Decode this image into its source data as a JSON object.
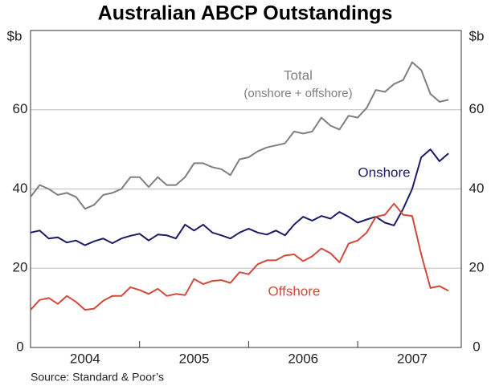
{
  "chart_data": {
    "type": "line",
    "title": "Australian ABCP Outstandings",
    "ylabel": "$b",
    "y2label": "$b",
    "source": "Source: Standard & Poor’s",
    "annotation": "(onshore + offshore)",
    "x": [
      2004,
      2004.083,
      2004.167,
      2004.25,
      2004.333,
      2004.417,
      2004.5,
      2004.583,
      2004.667,
      2004.75,
      2004.833,
      2004.917,
      2005,
      2005.083,
      2005.167,
      2005.25,
      2005.333,
      2005.417,
      2005.5,
      2005.583,
      2005.667,
      2005.75,
      2005.833,
      2005.917,
      2006,
      2006.083,
      2006.167,
      2006.25,
      2006.333,
      2006.417,
      2006.5,
      2006.583,
      2006.667,
      2006.75,
      2006.833,
      2006.917,
      2007,
      2007.083,
      2007.167,
      2007.25,
      2007.333,
      2007.417,
      2007.5,
      2007.583,
      2007.667,
      2007.75,
      2007.833
    ],
    "series": [
      {
        "name": "Total",
        "color": "#7f7f7f",
        "values": [
          38,
          41,
          40,
          38.5,
          39,
          38,
          35,
          36,
          38.5,
          39,
          40,
          43,
          43,
          40.5,
          43,
          41,
          41,
          43,
          46.5,
          46.5,
          45.5,
          45,
          43.5,
          47.5,
          48,
          49.5,
          50.5,
          51,
          51.5,
          54.5,
          54,
          54.5,
          58,
          56,
          55,
          58.5,
          58,
          60.5,
          65,
          64.5,
          66.5,
          67.5,
          72,
          70,
          64,
          62,
          62.5
        ]
      },
      {
        "name": "Onshore",
        "color": "#1b1b66",
        "values": [
          29,
          29.5,
          27.5,
          27.8,
          26.5,
          27,
          25.8,
          26.8,
          27.5,
          26.3,
          27.5,
          28.2,
          28.7,
          27,
          28.5,
          28.3,
          27.5,
          31,
          29.5,
          31,
          29,
          28.3,
          27.5,
          29,
          30,
          29,
          28.5,
          29.5,
          28.3,
          31,
          33,
          32,
          33.2,
          32.5,
          34.2,
          33,
          31.5,
          32.3,
          33,
          31.5,
          30.8,
          35,
          40,
          48,
          50,
          47,
          49
        ]
      },
      {
        "name": "Offshore",
        "color": "#d04a3a",
        "values": [
          9.5,
          12,
          12.5,
          11,
          13,
          11.5,
          9.5,
          9.8,
          11.8,
          13,
          13,
          15.2,
          14.5,
          13.5,
          14.8,
          13,
          13.5,
          13.2,
          17.3,
          16,
          16.8,
          17,
          16.3,
          19,
          18.5,
          21,
          22,
          22,
          23.2,
          23.5,
          21.8,
          23,
          25,
          23.8,
          21.5,
          26.2,
          27,
          29,
          33,
          33.5,
          36.3,
          33.5,
          33.2,
          23.5,
          15,
          15.5,
          14.3
        ]
      }
    ],
    "xlim": [
      2004,
      2007.95
    ],
    "xticks": [
      {
        "value": 2004.5,
        "label": "2004"
      },
      {
        "value": 2005.5,
        "label": "2005"
      },
      {
        "value": 2006.5,
        "label": "2006"
      },
      {
        "value": 2007.5,
        "label": "2007"
      }
    ],
    "xdividers": [
      2005,
      2006,
      2007
    ],
    "ylim": [
      0,
      80
    ],
    "yticks": [
      0,
      20,
      40,
      60
    ],
    "y2lim": [
      0,
      80
    ],
    "y2ticks": [
      0,
      20,
      40,
      60
    ],
    "grid": true
  }
}
